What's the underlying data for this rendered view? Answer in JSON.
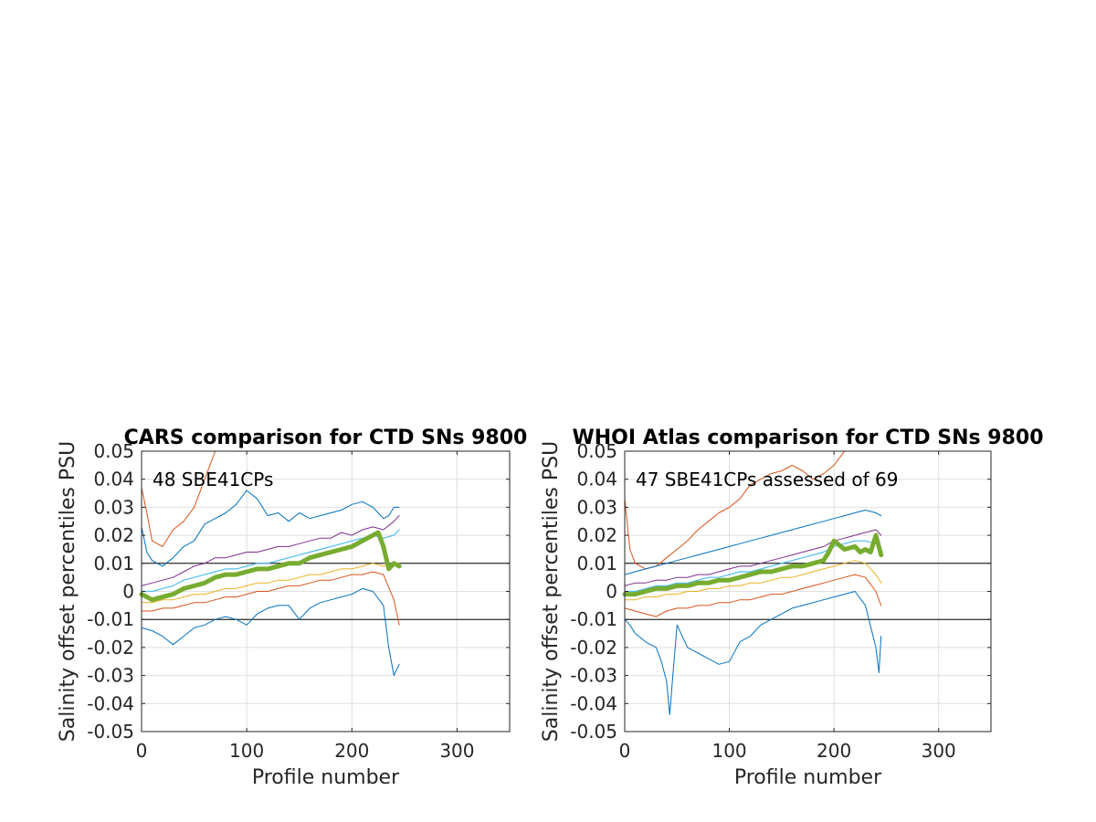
{
  "chart_data": [
    {
      "type": "line",
      "title": "CARS comparison for CTD SNs 9800",
      "xlabel": "Profile number",
      "ylabel": "Salinity offset percentiles PSU",
      "annotation": "48 SBE41CPs",
      "xlim": [
        0,
        350
      ],
      "ylim": [
        -0.05,
        0.05
      ],
      "xticks": [
        0,
        100,
        200,
        300
      ],
      "xtick_labels": [
        "0",
        "100",
        "200",
        "300"
      ],
      "yticks": [
        0.05,
        0.04,
        0.03,
        0.02,
        0.01,
        0,
        -0.01,
        -0.02,
        -0.03,
        -0.04,
        -0.05
      ],
      "ytick_labels": [
        "0.05",
        "0.04",
        "0.03",
        "0.02",
        "0.01",
        "0",
        "-0.01",
        "-0.02",
        "-0.03",
        "-0.04",
        "-0.05"
      ],
      "grid": true,
      "reference_lines": [
        0.01,
        -0.01
      ],
      "series": [
        {
          "color": "#D95319",
          "width": 1,
          "x": [
            0,
            5,
            10,
            20,
            30,
            40,
            50,
            60,
            70,
            80,
            90,
            100,
            120,
            140,
            160,
            180,
            200,
            210,
            220,
            230,
            235,
            240,
            245
          ],
          "y": [
            0.037,
            0.028,
            0.018,
            0.016,
            0.022,
            0.025,
            0.03,
            0.04,
            0.05,
            0.05,
            0.05,
            0.05,
            0.05,
            0.05,
            0.05,
            0.05,
            0.05,
            0.05,
            0.05,
            0.05,
            0.05,
            0.05,
            0.05
          ]
        },
        {
          "color": "#0072BD",
          "width": 1,
          "x": [
            0,
            5,
            10,
            20,
            30,
            40,
            50,
            60,
            70,
            80,
            90,
            100,
            110,
            120,
            130,
            140,
            150,
            160,
            170,
            180,
            190,
            200,
            210,
            220,
            230,
            235,
            240,
            245
          ],
          "y": [
            0.023,
            0.014,
            0.011,
            0.009,
            0.012,
            0.016,
            0.018,
            0.024,
            0.026,
            0.028,
            0.031,
            0.036,
            0.033,
            0.027,
            0.028,
            0.025,
            0.028,
            0.026,
            0.027,
            0.028,
            0.029,
            0.031,
            0.032,
            0.03,
            0.026,
            0.027,
            0.03,
            0.03
          ]
        },
        {
          "color": "#7E2F8E",
          "width": 1,
          "x": [
            0,
            10,
            20,
            30,
            40,
            50,
            60,
            70,
            80,
            90,
            100,
            110,
            120,
            130,
            140,
            150,
            160,
            170,
            180,
            190,
            200,
            210,
            220,
            230,
            240,
            245
          ],
          "y": [
            0.002,
            0.003,
            0.004,
            0.005,
            0.007,
            0.009,
            0.01,
            0.012,
            0.012,
            0.013,
            0.014,
            0.014,
            0.015,
            0.016,
            0.016,
            0.017,
            0.018,
            0.019,
            0.019,
            0.021,
            0.02,
            0.022,
            0.023,
            0.022,
            0.025,
            0.027
          ]
        },
        {
          "color": "#4DBEEE",
          "width": 1.2,
          "x": [
            0,
            10,
            20,
            30,
            40,
            50,
            60,
            70,
            80,
            90,
            100,
            110,
            120,
            130,
            140,
            150,
            160,
            170,
            180,
            190,
            200,
            210,
            220,
            230,
            240,
            245
          ],
          "y": [
            0,
            0.0,
            0.001,
            0.002,
            0.004,
            0.005,
            0.006,
            0.007,
            0.008,
            0.008,
            0.009,
            0.01,
            0.01,
            0.011,
            0.012,
            0.013,
            0.014,
            0.015,
            0.016,
            0.017,
            0.018,
            0.019,
            0.02,
            0.019,
            0.02,
            0.022
          ]
        },
        {
          "color": "#EDB120",
          "width": 1,
          "x": [
            0,
            10,
            20,
            30,
            40,
            50,
            60,
            70,
            80,
            90,
            100,
            110,
            120,
            130,
            140,
            150,
            160,
            170,
            180,
            190,
            200,
            210,
            220,
            230,
            240,
            245
          ],
          "y": [
            -0.004,
            -0.004,
            -0.003,
            -0.003,
            -0.002,
            -0.001,
            -0.001,
            0.0,
            0.001,
            0.001,
            0.002,
            0.003,
            0.003,
            0.004,
            0.004,
            0.005,
            0.006,
            0.006,
            0.007,
            0.008,
            0.008,
            0.009,
            0.01,
            0.009,
            0.01,
            0.01
          ]
        },
        {
          "color": "#D95319",
          "width": 1,
          "x": [
            0,
            10,
            20,
            30,
            40,
            50,
            60,
            70,
            80,
            90,
            100,
            110,
            120,
            130,
            140,
            150,
            160,
            170,
            180,
            190,
            200,
            210,
            220,
            230,
            240,
            245
          ],
          "y": [
            -0.007,
            -0.007,
            -0.006,
            -0.006,
            -0.005,
            -0.004,
            -0.004,
            -0.003,
            -0.002,
            -0.002,
            -0.001,
            0.0,
            0.0,
            0.001,
            0.002,
            0.002,
            0.003,
            0.004,
            0.004,
            0.005,
            0.006,
            0.006,
            0.007,
            0.006,
            -0.003,
            -0.012
          ]
        },
        {
          "color": "#0072BD",
          "width": 1,
          "x": [
            0,
            10,
            20,
            30,
            40,
            50,
            60,
            70,
            80,
            90,
            100,
            110,
            120,
            130,
            140,
            150,
            160,
            170,
            180,
            190,
            200,
            210,
            220,
            230,
            235,
            240,
            245
          ],
          "y": [
            -0.013,
            -0.014,
            -0.016,
            -0.019,
            -0.016,
            -0.013,
            -0.012,
            -0.01,
            -0.009,
            -0.01,
            -0.012,
            -0.008,
            -0.006,
            -0.005,
            -0.005,
            -0.01,
            -0.006,
            -0.004,
            -0.003,
            -0.002,
            -0.001,
            0.001,
            0.0,
            -0.005,
            -0.02,
            -0.03,
            -0.026
          ]
        },
        {
          "color": "#77AC30",
          "width": 5,
          "x": [
            0,
            10,
            20,
            30,
            40,
            50,
            60,
            70,
            80,
            90,
            100,
            110,
            120,
            130,
            140,
            150,
            160,
            170,
            180,
            190,
            200,
            210,
            220,
            225,
            230,
            235,
            240,
            245
          ],
          "y": [
            -0.001,
            -0.003,
            -0.002,
            -0.001,
            0.001,
            0.002,
            0.003,
            0.005,
            0.006,
            0.006,
            0.007,
            0.008,
            0.008,
            0.009,
            0.01,
            0.01,
            0.012,
            0.013,
            0.014,
            0.015,
            0.016,
            0.018,
            0.02,
            0.021,
            0.016,
            0.008,
            0.01,
            0.009
          ]
        }
      ]
    },
    {
      "type": "line",
      "title": "WHOI Atlas comparison for CTD SNs 9800",
      "xlabel": "Profile number",
      "ylabel": "Salinity offset percentiles PSU",
      "annotation": "47 SBE41CPs assessed of 69",
      "xlim": [
        0,
        350
      ],
      "ylim": [
        -0.05,
        0.05
      ],
      "xticks": [
        0,
        100,
        200,
        300
      ],
      "xtick_labels": [
        "0",
        "100",
        "200",
        "300"
      ],
      "yticks": [
        0.05,
        0.04,
        0.03,
        0.02,
        0.01,
        0,
        -0.01,
        -0.02,
        -0.03,
        -0.04,
        -0.05
      ],
      "ytick_labels": [
        "0.05",
        "0.04",
        "0.03",
        "0.02",
        "0.01",
        "0",
        "-0.01",
        "-0.02",
        "-0.03",
        "-0.04",
        "-0.05"
      ],
      "grid": true,
      "reference_lines": [
        0.01,
        -0.01
      ],
      "series": [
        {
          "color": "#D95319",
          "width": 1,
          "x": [
            0,
            5,
            10,
            20,
            30,
            40,
            50,
            60,
            70,
            80,
            90,
            100,
            110,
            120,
            130,
            140,
            150,
            160,
            170,
            180,
            190,
            200,
            210,
            220,
            230,
            240,
            245
          ],
          "y": [
            0.033,
            0.015,
            0.01,
            0.008,
            0.009,
            0.012,
            0.015,
            0.018,
            0.022,
            0.025,
            0.028,
            0.03,
            0.033,
            0.038,
            0.04,
            0.042,
            0.043,
            0.045,
            0.043,
            0.04,
            0.042,
            0.045,
            0.05,
            0.05,
            0.05,
            0.05,
            0.05
          ]
        },
        {
          "color": "#0072BD",
          "width": 1,
          "x": [
            0,
            10,
            20,
            30,
            40,
            50,
            60,
            70,
            80,
            90,
            100,
            110,
            120,
            130,
            140,
            150,
            160,
            170,
            180,
            190,
            200,
            210,
            220,
            230,
            240,
            245
          ],
          "y": [
            0.006,
            0.007,
            0.008,
            0.009,
            0.01,
            0.011,
            0.012,
            0.013,
            0.014,
            0.015,
            0.016,
            0.017,
            0.018,
            0.019,
            0.02,
            0.021,
            0.022,
            0.023,
            0.024,
            0.025,
            0.026,
            0.027,
            0.028,
            0.029,
            0.028,
            0.027
          ]
        },
        {
          "color": "#7E2F8E",
          "width": 1,
          "x": [
            0,
            10,
            20,
            30,
            40,
            50,
            60,
            70,
            80,
            90,
            100,
            110,
            120,
            130,
            140,
            150,
            160,
            170,
            180,
            190,
            200,
            210,
            220,
            230,
            240,
            245
          ],
          "y": [
            0.002,
            0.003,
            0.003,
            0.004,
            0.004,
            0.005,
            0.005,
            0.006,
            0.006,
            0.007,
            0.008,
            0.009,
            0.009,
            0.01,
            0.011,
            0.012,
            0.013,
            0.014,
            0.015,
            0.016,
            0.018,
            0.019,
            0.02,
            0.021,
            0.022,
            0.02
          ]
        },
        {
          "color": "#4DBEEE",
          "width": 1.2,
          "x": [
            0,
            10,
            20,
            30,
            40,
            50,
            60,
            70,
            80,
            90,
            100,
            110,
            120,
            130,
            140,
            150,
            160,
            170,
            180,
            190,
            200,
            210,
            220,
            230,
            240,
            245
          ],
          "y": [
            0,
            0.0,
            0.001,
            0.002,
            0.002,
            0.003,
            0.003,
            0.004,
            0.005,
            0.005,
            0.006,
            0.007,
            0.007,
            0.008,
            0.009,
            0.01,
            0.011,
            0.012,
            0.013,
            0.014,
            0.016,
            0.017,
            0.018,
            0.018,
            0.017,
            0.015
          ]
        },
        {
          "color": "#EDB120",
          "width": 1,
          "x": [
            0,
            10,
            20,
            30,
            40,
            50,
            60,
            70,
            80,
            90,
            100,
            110,
            120,
            130,
            140,
            150,
            160,
            170,
            180,
            190,
            200,
            210,
            220,
            230,
            240,
            245
          ],
          "y": [
            -0.003,
            -0.003,
            -0.002,
            -0.002,
            -0.001,
            -0.001,
            0.0,
            0.0,
            0.001,
            0.001,
            0.002,
            0.002,
            0.003,
            0.003,
            0.004,
            0.005,
            0.005,
            0.006,
            0.007,
            0.008,
            0.009,
            0.01,
            0.011,
            0.01,
            0.006,
            0.003
          ]
        },
        {
          "color": "#D95319",
          "width": 1,
          "x": [
            0,
            10,
            20,
            30,
            40,
            50,
            60,
            70,
            80,
            90,
            100,
            110,
            120,
            130,
            140,
            150,
            160,
            170,
            180,
            190,
            200,
            210,
            220,
            230,
            240,
            245
          ],
          "y": [
            -0.006,
            -0.007,
            -0.008,
            -0.009,
            -0.007,
            -0.006,
            -0.006,
            -0.005,
            -0.005,
            -0.004,
            -0.004,
            -0.003,
            -0.003,
            -0.002,
            -0.001,
            -0.001,
            0.0,
            0.001,
            0.002,
            0.003,
            0.004,
            0.005,
            0.006,
            0.005,
            0.0,
            -0.005
          ]
        },
        {
          "color": "#0072BD",
          "width": 1,
          "x": [
            0,
            5,
            10,
            20,
            30,
            35,
            40,
            43,
            46,
            50,
            60,
            70,
            80,
            90,
            100,
            110,
            120,
            130,
            140,
            150,
            160,
            170,
            180,
            190,
            200,
            210,
            220,
            230,
            240,
            243,
            245
          ],
          "y": [
            -0.01,
            -0.012,
            -0.015,
            -0.018,
            -0.02,
            -0.025,
            -0.032,
            -0.044,
            -0.03,
            -0.012,
            -0.02,
            -0.022,
            -0.024,
            -0.026,
            -0.025,
            -0.018,
            -0.016,
            -0.012,
            -0.01,
            -0.008,
            -0.006,
            -0.005,
            -0.004,
            -0.003,
            -0.002,
            -0.001,
            0.0,
            -0.005,
            -0.02,
            -0.029,
            -0.016
          ]
        },
        {
          "color": "#77AC30",
          "width": 5,
          "x": [
            0,
            10,
            20,
            30,
            40,
            50,
            60,
            70,
            80,
            90,
            100,
            110,
            120,
            130,
            140,
            150,
            160,
            170,
            180,
            190,
            195,
            200,
            210,
            220,
            225,
            230,
            235,
            240,
            245
          ],
          "y": [
            -0.001,
            -0.001,
            0.0,
            0.001,
            0.001,
            0.002,
            0.002,
            0.003,
            0.003,
            0.004,
            0.004,
            0.005,
            0.006,
            0.007,
            0.007,
            0.008,
            0.009,
            0.009,
            0.01,
            0.011,
            0.014,
            0.018,
            0.015,
            0.016,
            0.014,
            0.015,
            0.014,
            0.02,
            0.013
          ]
        }
      ]
    }
  ]
}
